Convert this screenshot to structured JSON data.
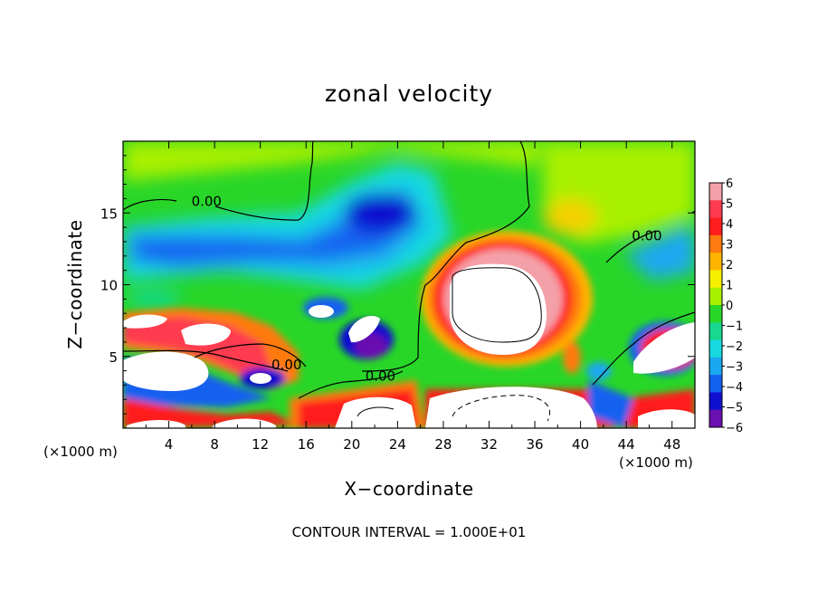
{
  "chart_data": {
    "type": "heatmap",
    "title": "zonal velocity",
    "xlabel": "X−coordinate",
    "ylabel": "Z−coordinate",
    "x_unit_left": "(×1000 m)",
    "x_unit_right": "(×1000 m)",
    "xlim": [
      0,
      50
    ],
    "ylim": [
      0,
      20
    ],
    "x_ticks": [
      4,
      8,
      12,
      16,
      20,
      24,
      28,
      32,
      36,
      40,
      44,
      48
    ],
    "x_tick_labels": [
      "4",
      "8",
      "12",
      "16",
      "20",
      "24",
      "28",
      "32",
      "36",
      "40",
      "44",
      "48"
    ],
    "y_ticks": [
      5,
      10,
      15
    ],
    "y_tick_labels": [
      "5",
      "10",
      "15"
    ],
    "colorbar": {
      "range": [
        -6,
        6
      ],
      "ticks": [
        6,
        5,
        4,
        3,
        2,
        1,
        0,
        -1,
        -2,
        -3,
        -4,
        -5,
        -6
      ],
      "tick_labels": [
        "6",
        "5",
        "4",
        "3",
        "2",
        "1",
        "0",
        "−1",
        "−2",
        "−3",
        "−4",
        "−5",
        "−6"
      ],
      "colors": [
        "#f4a0a8",
        "#ff3b50",
        "#ff1e1e",
        "#ff7a10",
        "#ffb400",
        "#f4f000",
        "#a8f000",
        "#28d628",
        "#18d890",
        "#18d8e0",
        "#1aa8f0",
        "#1460f0",
        "#1010d0",
        "#6a10b0"
      ]
    },
    "contour_labels": [
      {
        "text": "0.00",
        "x": 7.3,
        "z": 15.5
      },
      {
        "text": "0.00",
        "x": 45.8,
        "z": 13.1
      },
      {
        "text": "0.00",
        "x": 14.3,
        "z": 4.1
      },
      {
        "text": "0.00",
        "x": 22.5,
        "z": 3.3
      }
    ],
    "contour_interval": "CONTOUR INTERVAL = 1.000E+01"
  }
}
